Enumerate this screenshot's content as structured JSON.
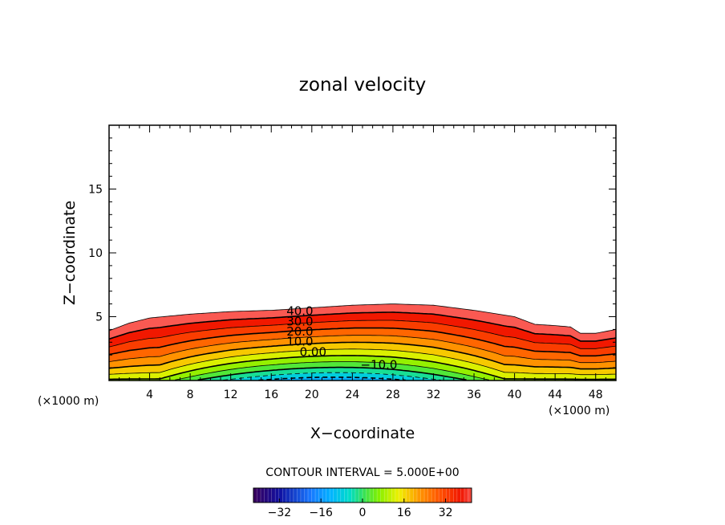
{
  "chart_data": {
    "type": "contour",
    "title": "zonal velocity",
    "xlabel": "X−coordinate",
    "ylabel": "Z−coordinate",
    "x_unit_left": "(×1000 m)",
    "x_unit_right": "(×1000 m)",
    "xlim": [
      0,
      50
    ],
    "ylim": [
      0,
      20
    ],
    "x_ticks": [
      4,
      8,
      12,
      16,
      20,
      24,
      28,
      32,
      36,
      40,
      44,
      48
    ],
    "y_ticks": [
      5,
      10,
      15
    ],
    "contour_interval_label": "CONTOUR INTERVAL = 5.000E+00",
    "contour_labels": [
      {
        "text": "40.0",
        "x": 17.5,
        "z": 5.5
      },
      {
        "text": "30.0",
        "x": 17.5,
        "z": 4.7
      },
      {
        "text": "20.0",
        "x": 17.5,
        "z": 3.9
      },
      {
        "text": "10.0",
        "x": 17.5,
        "z": 3.1
      },
      {
        "text": "0.00",
        "x": 18.8,
        "z": 2.3
      },
      {
        "text": "−10.0",
        "x": 24.8,
        "z": 1.3
      }
    ],
    "field": {
      "surface_top_z": [
        [
          0,
          3.9
        ],
        [
          2,
          4.5
        ],
        [
          4,
          4.9
        ],
        [
          8,
          5.2
        ],
        [
          12,
          5.4
        ],
        [
          16,
          5.5
        ],
        [
          20,
          5.7
        ],
        [
          24,
          5.9
        ],
        [
          28,
          6.0
        ],
        [
          32,
          5.9
        ],
        [
          36,
          5.5
        ],
        [
          40,
          5.0
        ],
        [
          42,
          4.4
        ],
        [
          44,
          4.3
        ],
        [
          45.5,
          4.2
        ],
        [
          46.5,
          3.7
        ],
        [
          48,
          3.7
        ],
        [
          50,
          4.0
        ]
      ],
      "min_value": -15,
      "max_value": 45,
      "min_location_x": 22
    },
    "colorbar": {
      "range": [
        -42,
        42
      ],
      "ticks": [
        -32,
        -16,
        0,
        16,
        32
      ],
      "tick_labels": [
        "−32",
        "−16",
        "0",
        "16",
        "32"
      ]
    },
    "colors": {
      "negative_deep": "#00b4ff",
      "zero": "#7cfc00",
      "positive_high": "#ff3b00",
      "top_band": "#ff8080",
      "line": "#000000"
    }
  }
}
